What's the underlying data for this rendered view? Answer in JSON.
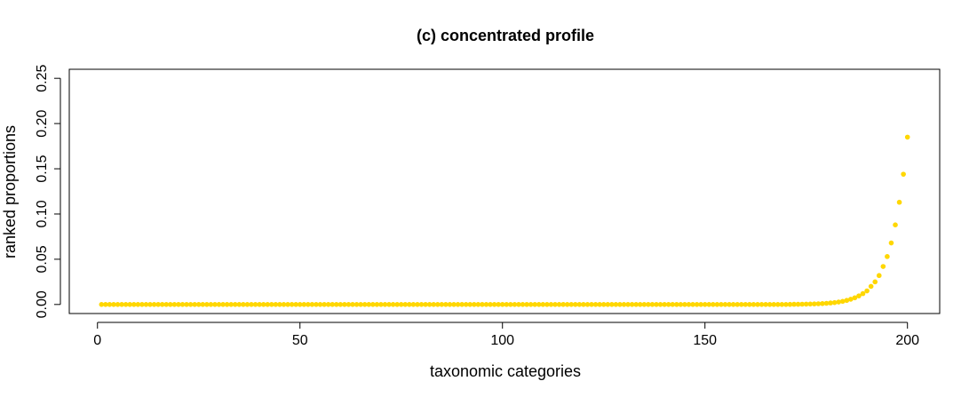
{
  "chart_data": {
    "type": "scatter",
    "title": "(c) concentrated profile",
    "x_label": "taxonomic categories",
    "y_label": "ranked proportions",
    "xlim": [
      -6.96,
      207.96
    ],
    "ylim": [
      -0.01,
      0.26
    ],
    "xticks": [
      0,
      50,
      100,
      150,
      200
    ],
    "yticks": [
      {
        "value": 0,
        "label": "0.00"
      },
      0.05,
      {
        "value": 0.1,
        "label": "0.10"
      },
      0.15,
      {
        "value": 0.2,
        "label": "0.20"
      },
      0.25
    ],
    "series": [
      {
        "color": "#ffd700",
        "x": [
          1,
          2,
          3,
          4,
          5,
          6,
          7,
          8,
          9,
          10,
          11,
          12,
          13,
          14,
          15,
          16,
          17,
          18,
          19,
          20,
          21,
          22,
          23,
          24,
          25,
          26,
          27,
          28,
          29,
          30,
          31,
          32,
          33,
          34,
          35,
          36,
          37,
          38,
          39,
          40,
          41,
          42,
          43,
          44,
          45,
          46,
          47,
          48,
          49,
          50,
          51,
          52,
          53,
          54,
          55,
          56,
          57,
          58,
          59,
          60,
          61,
          62,
          63,
          64,
          65,
          66,
          67,
          68,
          69,
          70,
          71,
          72,
          73,
          74,
          75,
          76,
          77,
          78,
          79,
          80,
          81,
          82,
          83,
          84,
          85,
          86,
          87,
          88,
          89,
          90,
          91,
          92,
          93,
          94,
          95,
          96,
          97,
          98,
          99,
          100,
          101,
          102,
          103,
          104,
          105,
          106,
          107,
          108,
          109,
          110,
          111,
          112,
          113,
          114,
          115,
          116,
          117,
          118,
          119,
          120,
          121,
          122,
          123,
          124,
          125,
          126,
          127,
          128,
          129,
          130,
          131,
          132,
          133,
          134,
          135,
          136,
          137,
          138,
          139,
          140,
          141,
          142,
          143,
          144,
          145,
          146,
          147,
          148,
          149,
          150,
          151,
          152,
          153,
          154,
          155,
          156,
          157,
          158,
          159,
          160,
          161,
          162,
          163,
          164,
          165,
          166,
          167,
          168,
          169,
          170,
          171,
          172,
          173,
          174,
          175,
          176,
          177,
          178,
          179,
          180,
          181,
          182,
          183,
          184,
          185,
          186,
          187,
          188,
          189,
          190,
          191,
          192,
          193,
          194,
          195,
          196,
          197,
          198,
          199,
          200
        ],
        "values": [
          0,
          0,
          0,
          0,
          0,
          0,
          0,
          0,
          0,
          0,
          0,
          0,
          0,
          0,
          0,
          0,
          0,
          0,
          0,
          0,
          0,
          0,
          0,
          0,
          0,
          0,
          0,
          0,
          0,
          0,
          0,
          0,
          0,
          0,
          0,
          0,
          0,
          0,
          0,
          0,
          0,
          0,
          0,
          0,
          0,
          0,
          0,
          0,
          0,
          0,
          0,
          0,
          0,
          0,
          0,
          0,
          0,
          0,
          0,
          0,
          0,
          0,
          0,
          0,
          0,
          0,
          0,
          0,
          0,
          0,
          0,
          0,
          0,
          0,
          0,
          0,
          0,
          0,
          0,
          0,
          0,
          0,
          0,
          0,
          0,
          0,
          0,
          0,
          0,
          0,
          0,
          0,
          0,
          0,
          0,
          0,
          0,
          0,
          0,
          0,
          0,
          0,
          0,
          0,
          0,
          0,
          0,
          0,
          0,
          0,
          0,
          0,
          0,
          0,
          0,
          0,
          0,
          0,
          0,
          0,
          0,
          0,
          0,
          0,
          0,
          0,
          0,
          0,
          0,
          0,
          0,
          0,
          0,
          0,
          0,
          0,
          0,
          0,
          0,
          0,
          0,
          0,
          0,
          0,
          0,
          0,
          0,
          0,
          0,
          0,
          0,
          0,
          0,
          0,
          0,
          0,
          0,
          0,
          0,
          0,
          0,
          0,
          0,
          0,
          0,
          0,
          0,
          0,
          0,
          0,
          0.0001,
          0.0002,
          0.0002,
          0.0003,
          0.0004,
          0.0005,
          0.0006,
          0.0008,
          0.001,
          0.0013,
          0.0017,
          0.0021,
          0.0027,
          0.0035,
          0.0045,
          0.0058,
          0.0074,
          0.0095,
          0.012,
          0.015,
          0.02,
          0.025,
          0.032,
          0.042,
          0.053,
          0.068,
          0.088,
          0.113,
          0.144,
          0.185
        ]
      }
    ]
  }
}
